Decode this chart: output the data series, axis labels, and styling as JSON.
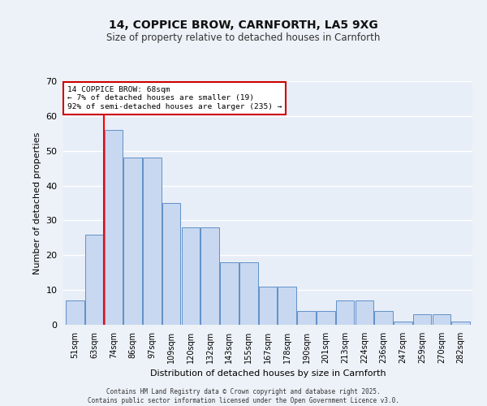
{
  "title1": "14, COPPICE BROW, CARNFORTH, LA5 9XG",
  "title2": "Size of property relative to detached houses in Carnforth",
  "xlabel": "Distribution of detached houses by size in Carnforth",
  "ylabel": "Number of detached properties",
  "categories": [
    "51sqm",
    "63sqm",
    "74sqm",
    "86sqm",
    "97sqm",
    "109sqm",
    "120sqm",
    "132sqm",
    "143sqm",
    "155sqm",
    "167sqm",
    "178sqm",
    "190sqm",
    "201sqm",
    "213sqm",
    "224sqm",
    "236sqm",
    "247sqm",
    "259sqm",
    "270sqm",
    "282sqm"
  ],
  "bar_heights": [
    7,
    26,
    56,
    48,
    48,
    35,
    28,
    28,
    18,
    18,
    11,
    11,
    4,
    4,
    7,
    7,
    4,
    1,
    3,
    3,
    1
  ],
  "bar_color": "#c8d8f0",
  "bar_edge_color": "#6090c8",
  "red_line_x": 1.5,
  "annotation_text": "14 COPPICE BROW: 68sqm\n← 7% of detached houses are smaller (19)\n92% of semi-detached houses are larger (235) →",
  "annotation_box_color": "#cc0000",
  "ylim": [
    0,
    70
  ],
  "yticks": [
    0,
    10,
    20,
    30,
    40,
    50,
    60,
    70
  ],
  "bg_color": "#e8eef8",
  "plot_bg_color": "#edf1f8",
  "grid_color": "#ffffff",
  "footer_line1": "Contains HM Land Registry data © Crown copyright and database right 2025.",
  "footer_line2": "Contains public sector information licensed under the Open Government Licence v3.0."
}
